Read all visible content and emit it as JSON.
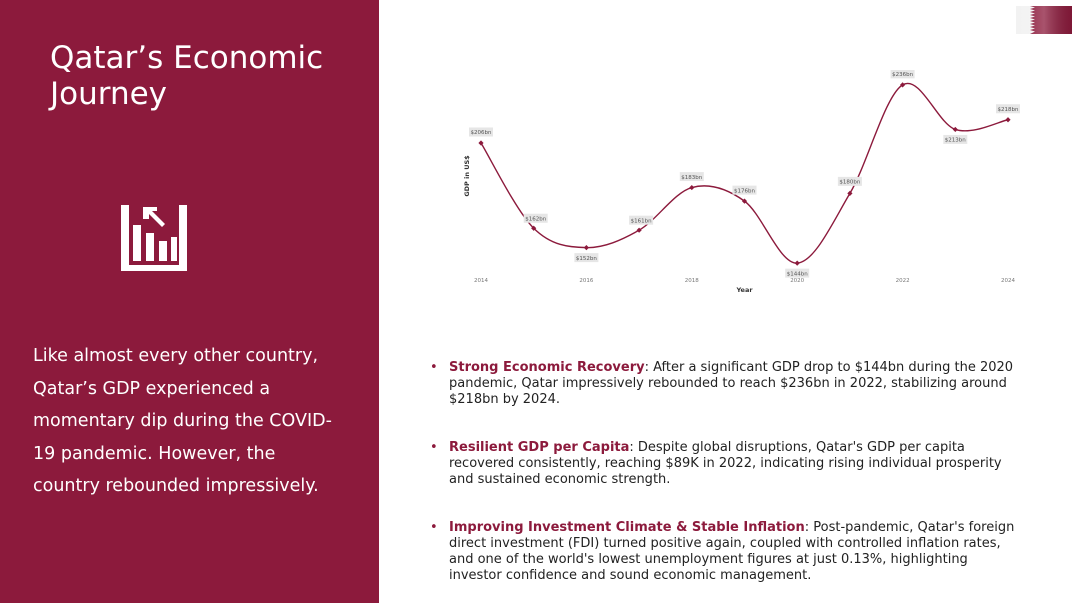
{
  "slide": {
    "title": "Qatar’s Economic Journey",
    "intro": "Like almost every other country, Qatar’s GDP experienced a momentary dip during the COVID-19 pandemic. However, the country rebounded impressively.",
    "icon": "bar-chart-growth-icon",
    "flag_icon": "qatar-flag-icon"
  },
  "colors": {
    "panel": "#8c1a3c",
    "line": "#8c1a3c",
    "text": "#222222",
    "label_bg": "#e6e6e6"
  },
  "bullets": [
    {
      "heading": "Strong Economic Recovery",
      "text": ": After a significant GDP drop to $144bn during the 2020 pandemic, Qatar impressively rebounded to reach $236bn in 2022, stabilizing around $218bn by 2024."
    },
    {
      "heading": "Resilient GDP per Capita",
      "text": ": Despite global disruptions, Qatar's GDP per capita recovered consistently, reaching $89K in 2022, indicating rising individual prosperity and sustained economic strength."
    },
    {
      "heading": "Improving Investment Climate & Stable Inflation",
      "text": ": Post-pandemic, Qatar's foreign direct investment (FDI) turned positive again, coupled with controlled inflation rates, and one of the world's lowest unemployment figures at just 0.13%, highlighting investor confidence and sound economic management."
    }
  ],
  "chart_data": {
    "type": "line",
    "title": "",
    "xlabel": "Year",
    "ylabel": "GDP in US$",
    "x": [
      2014,
      2015,
      2016,
      2017,
      2018,
      2019,
      2020,
      2021,
      2022,
      2023,
      2024
    ],
    "x_ticks": [
      2014,
      2016,
      2018,
      2020,
      2022,
      2024
    ],
    "series": [
      {
        "values": [
          206,
          162,
          152,
          161,
          183,
          176,
          144,
          180,
          236,
          213,
          218
        ],
        "labels": [
          "$206bn",
          "$162bn",
          "$152bn",
          "$161bn",
          "$183bn",
          "$176bn",
          "$144bn",
          "$180bn",
          "$236bn",
          "$213bn",
          "$218bn"
        ]
      }
    ],
    "ylim": [
      142,
      238
    ],
    "xlim": [
      2014,
      2024
    ],
    "grid": false,
    "smooth": true
  }
}
